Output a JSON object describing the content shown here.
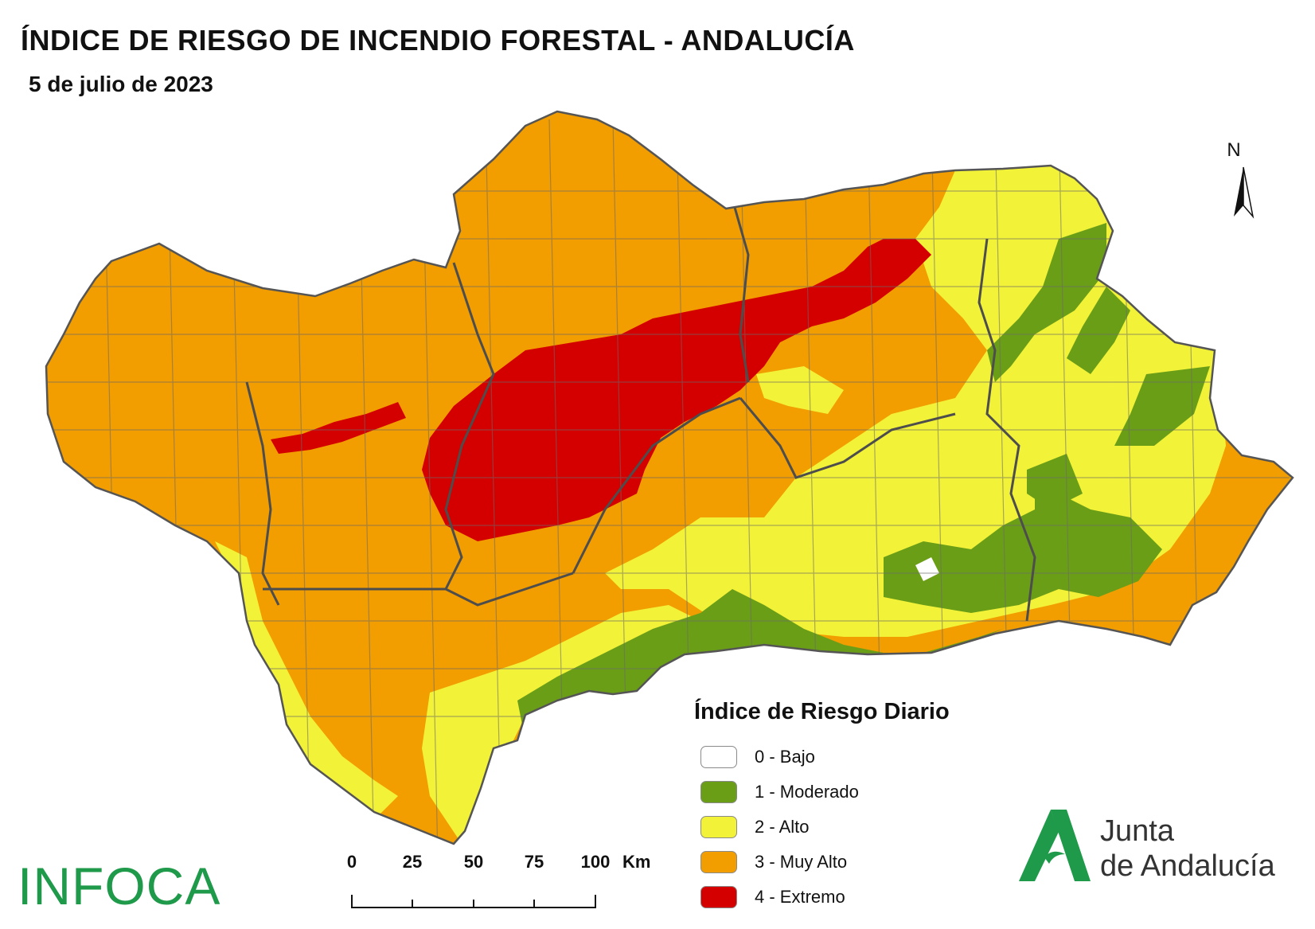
{
  "title": "ÍNDICE DE RIESGO DE INCENDIO FORESTAL - ANDALUCÍA",
  "subtitle": "5 de julio de 2023",
  "north_label": "N",
  "legend": {
    "title": "Índice de Riesgo Diario",
    "items": [
      {
        "label": "0 - Bajo",
        "color": "#ffffff"
      },
      {
        "label": "1 - Moderado",
        "color": "#6b9e17"
      },
      {
        "label": "2 - Alto",
        "color": "#f2f238"
      },
      {
        "label": "3 - Muy Alto",
        "color": "#f29d00"
      },
      {
        "label": "4 - Extremo",
        "color": "#d40000"
      }
    ]
  },
  "scale_bar": {
    "ticks": [
      "0",
      "25",
      "50",
      "75",
      "100"
    ],
    "unit": "Km"
  },
  "logos": {
    "infoca": "INFOCA",
    "junta_line1": "Junta",
    "junta_line2": "de Andalucía"
  },
  "colors": {
    "border": "#555555",
    "logo_green": "#1f9a4a"
  }
}
